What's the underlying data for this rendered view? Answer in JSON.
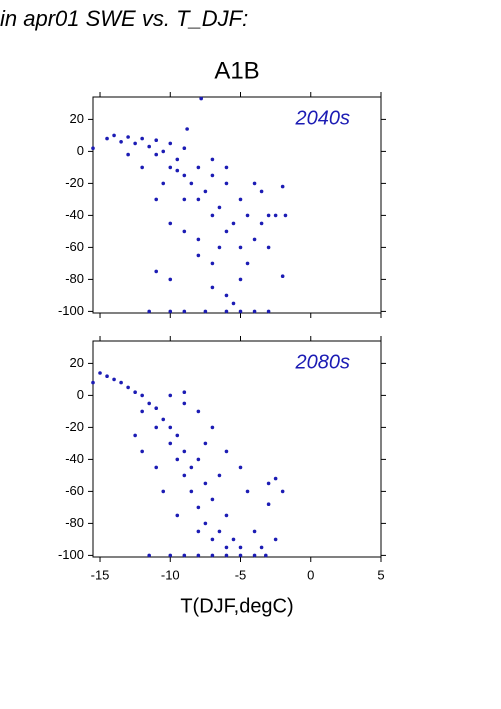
{
  "chart_data": [
    {
      "type": "scatter",
      "title": "in apr01 SWE vs. T_DJF:",
      "subtitle": "A1B",
      "annotation": "2040s",
      "color": "#1c1cb4",
      "x": [
        -15.5,
        -14.5,
        -14,
        -13.5,
        -13,
        -12.5,
        -12,
        -11.5,
        -11,
        -10.5,
        -10,
        -10,
        -9.5,
        -9,
        -9,
        -8.5,
        -8,
        -8,
        -7.5,
        -7,
        -7,
        -6.5,
        -6,
        -6,
        -5.5,
        -5,
        -5,
        -4.5,
        -4,
        -4,
        -3.5,
        -3,
        -2.5,
        -2,
        -1.8,
        -2,
        -3,
        -7,
        -6,
        -5,
        -8,
        -9,
        -10,
        -11,
        -10.5,
        -12,
        -13,
        -11,
        -7.5,
        -10,
        -11.5,
        -9,
        -6,
        -5,
        -4,
        -3,
        -7,
        -5.5,
        -8,
        -6.5,
        -4.5,
        -9,
        -8.8,
        -10,
        -3.5,
        -6,
        -7,
        -9.5,
        -11,
        -7.8
      ],
      "values": [
        2,
        8,
        10,
        6,
        9,
        5,
        8,
        3,
        7,
        0,
        5,
        -10,
        -5,
        -15,
        2,
        -20,
        -10,
        -30,
        -25,
        -15,
        -40,
        -35,
        -20,
        -50,
        -45,
        -30,
        -60,
        -40,
        -55,
        -20,
        -25,
        -40,
        -40,
        -22,
        -40,
        -78,
        -60,
        -70,
        -90,
        -80,
        -65,
        -50,
        -45,
        -30,
        -20,
        -10,
        -2,
        -75,
        -100,
        -100,
        -100,
        -100,
        -100,
        -100,
        -100,
        -100,
        -85,
        -95,
        -55,
        -60,
        -70,
        -30,
        14,
        -80,
        -45,
        -10,
        -5,
        -12,
        -2,
        33
      ],
      "xlim": [
        -15.5,
        5
      ],
      "ylim": [
        -101,
        34
      ],
      "xticks": [
        -15,
        -10,
        -5,
        0,
        5
      ],
      "yticks": [
        -100,
        -80,
        -60,
        -40,
        -20,
        0,
        20
      ]
    },
    {
      "type": "scatter",
      "annotation": "2080s",
      "xlabel": "T(DJF,degC)",
      "color": "#1c1cb4",
      "x": [
        -15.5,
        -15,
        -14.5,
        -14,
        -13.5,
        -13,
        -12.5,
        -12,
        -12,
        -11.5,
        -11,
        -11,
        -10.5,
        -10,
        -10,
        -9.5,
        -9.5,
        -9,
        -9,
        -8.5,
        -8.5,
        -8,
        -8,
        -7.5,
        -7.5,
        -7,
        -7,
        -6.5,
        -6,
        -6,
        -5.5,
        -5,
        -4,
        -3.5,
        -3,
        -2.5,
        -2,
        -2.5,
        -3,
        -4.5,
        -5,
        -6,
        -7,
        -8,
        -9,
        -10,
        -11,
        -12,
        -10.5,
        -9.5,
        -11.5,
        -10,
        -9,
        -8,
        -7,
        -6,
        -5,
        -4,
        -3.2,
        -9,
        -12.5,
        -8,
        -6.5,
        -7.5
      ],
      "values": [
        8,
        14,
        12,
        10,
        8,
        5,
        2,
        0,
        -10,
        -5,
        -20,
        -8,
        -15,
        -30,
        -20,
        -40,
        -25,
        -50,
        -35,
        -60,
        -45,
        -70,
        -40,
        -80,
        -55,
        -90,
        -65,
        -85,
        -95,
        -75,
        -90,
        -95,
        -85,
        -95,
        -68,
        -90,
        -60,
        -52,
        -55,
        -60,
        -45,
        -35,
        -20,
        -10,
        -5,
        0,
        -45,
        -35,
        -60,
        -75,
        -100,
        -100,
        -100,
        -100,
        -100,
        -100,
        -100,
        -100,
        -100,
        2,
        -25,
        -85,
        -50,
        -30
      ],
      "xlim": [
        -15.5,
        5
      ],
      "ylim": [
        -101,
        34
      ],
      "xticks": [
        -15,
        -10,
        -5,
        0,
        5
      ],
      "yticks": [
        -100,
        -80,
        -60,
        -40,
        -20,
        0,
        20
      ]
    }
  ]
}
